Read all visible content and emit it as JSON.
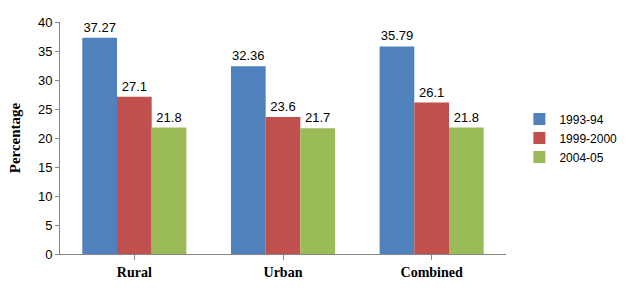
{
  "chart_data": {
    "type": "bar",
    "y_label": "Percentage",
    "categories": [
      "Rural",
      "Urban",
      "Combined"
    ],
    "series": [
      {
        "name": "1993-94",
        "color": "#4f81bd",
        "values": [
          37.27,
          32.36,
          35.79
        ]
      },
      {
        "name": "1999-2000",
        "color": "#c0504d",
        "values": [
          27.1,
          23.6,
          26.1
        ]
      },
      {
        "name": "2004-05",
        "color": "#9bbb59",
        "values": [
          21.8,
          21.7,
          21.8
        ]
      }
    ],
    "ylim": [
      0,
      40
    ],
    "yticks": [
      0,
      5,
      10,
      15,
      20,
      25,
      30,
      35,
      40
    ],
    "grid": false,
    "legend": "right",
    "data_labels": true
  }
}
